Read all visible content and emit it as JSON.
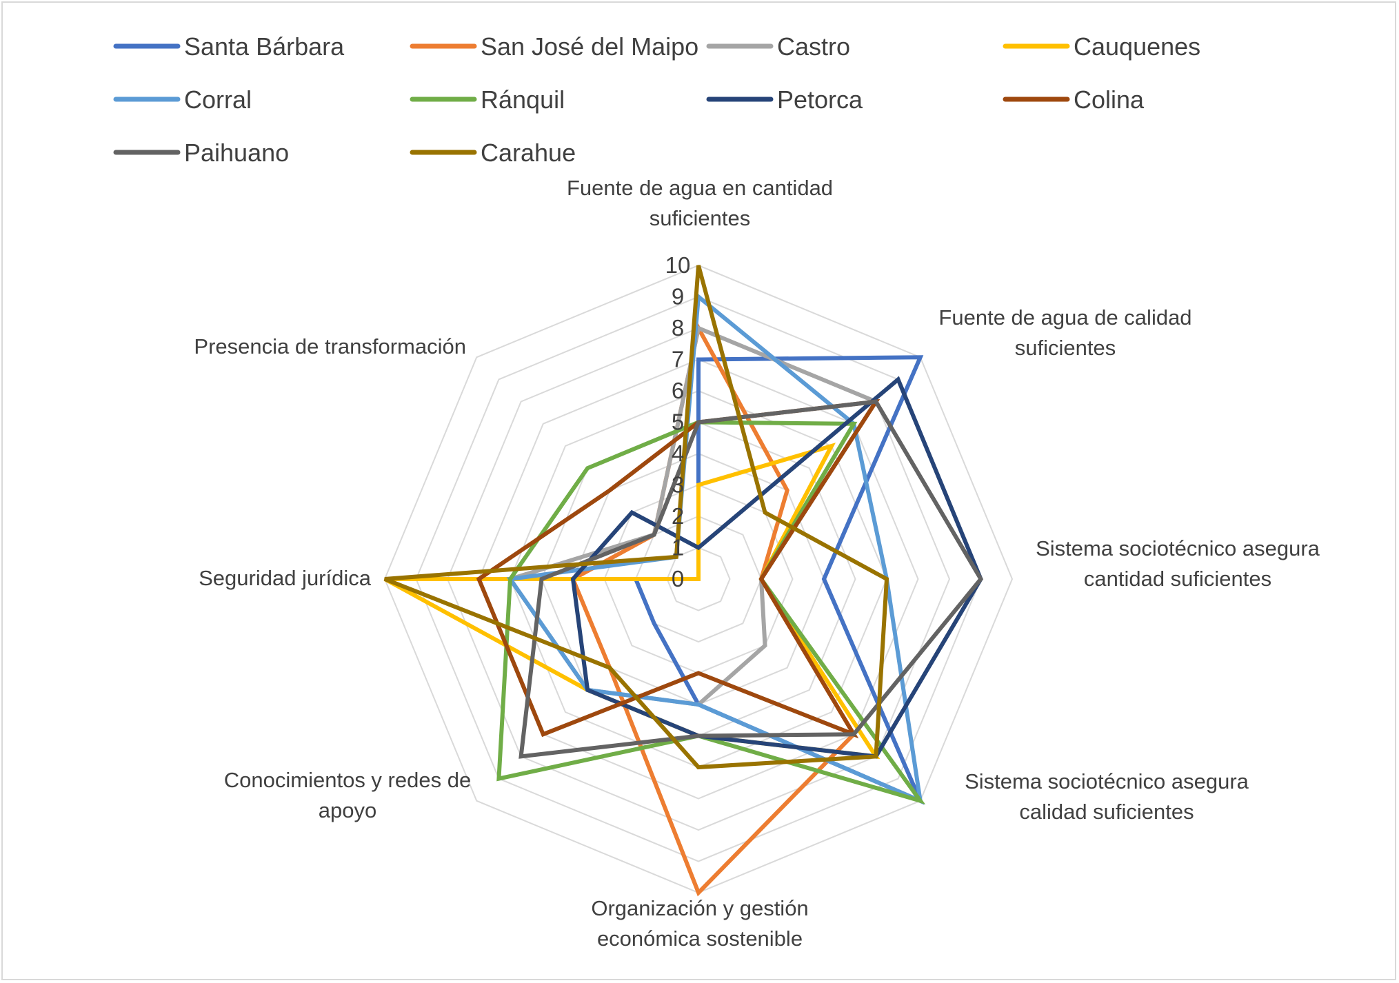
{
  "chart_data": {
    "type": "radar",
    "title": "",
    "axes": [
      "Fuente de agua en cantidad suficientes",
      "Fuente de agua de calidad suficientes",
      "Sistema sociotécnico asegura cantidad suficientes",
      "Sistema sociotécnico asegura calidad suficientes",
      "Organización y gestión económica sostenible",
      "Conocimientos y redes de apoyo",
      "Seguridad jurídica",
      "Presencia de transformación"
    ],
    "axis_label_lines": [
      [
        "Fuente de agua en cantidad",
        "suficientes"
      ],
      [
        "Fuente de agua de calidad",
        "suficientes"
      ],
      [
        "Sistema sociotécnico asegura",
        "cantidad suficientes"
      ],
      [
        "Sistema sociotécnico asegura",
        "calidad suficientes"
      ],
      [
        "Organización y gestión",
        "económica sostenible"
      ],
      [
        "Conocimientos y redes de",
        "apoyo"
      ],
      [
        "Seguridad jurídica"
      ],
      [
        "Presencia de transformación"
      ]
    ],
    "rlim": [
      0,
      10
    ],
    "ticks": [
      "0",
      "1",
      "2",
      "3",
      "4",
      "5",
      "6",
      "7",
      "8",
      "9",
      "10"
    ],
    "grid": true,
    "legend_position": "top",
    "series": [
      {
        "name": "Santa Bárbara",
        "color": "#4472C4",
        "values": [
          7,
          10,
          4,
          10,
          4,
          2,
          2,
          0
        ]
      },
      {
        "name": "San José del Maipo",
        "color": "#ED7D31",
        "values": [
          8,
          4,
          2,
          7,
          10,
          4,
          4,
          2
        ]
      },
      {
        "name": "Castro",
        "color": "#A5A5A5",
        "values": [
          8,
          8,
          2,
          3,
          4,
          5,
          6,
          2
        ]
      },
      {
        "name": "Cauquenes",
        "color": "#FFC000",
        "values": [
          3,
          6,
          2,
          8,
          5,
          5,
          10,
          0
        ]
      },
      {
        "name": "Corral",
        "color": "#5B9BD5",
        "values": [
          9,
          7,
          6,
          10,
          4,
          5,
          6,
          1
        ]
      },
      {
        "name": "Ránquil",
        "color": "#70AD47",
        "values": [
          5,
          7,
          2,
          10,
          5,
          9,
          6,
          5
        ]
      },
      {
        "name": "Petorca",
        "color": "#264478",
        "values": [
          1,
          9,
          9,
          8,
          5,
          5,
          4,
          3
        ]
      },
      {
        "name": "Colina",
        "color": "#9E480E",
        "values": [
          5,
          8,
          2,
          7,
          3,
          7,
          7,
          4
        ]
      },
      {
        "name": "Paihuano",
        "color": "#636363",
        "values": [
          5,
          8,
          9,
          7,
          5,
          8,
          5,
          2
        ]
      },
      {
        "name": "Carahue",
        "color": "#997300",
        "values": [
          10,
          3,
          6,
          8,
          6,
          4,
          10,
          1
        ]
      }
    ]
  }
}
